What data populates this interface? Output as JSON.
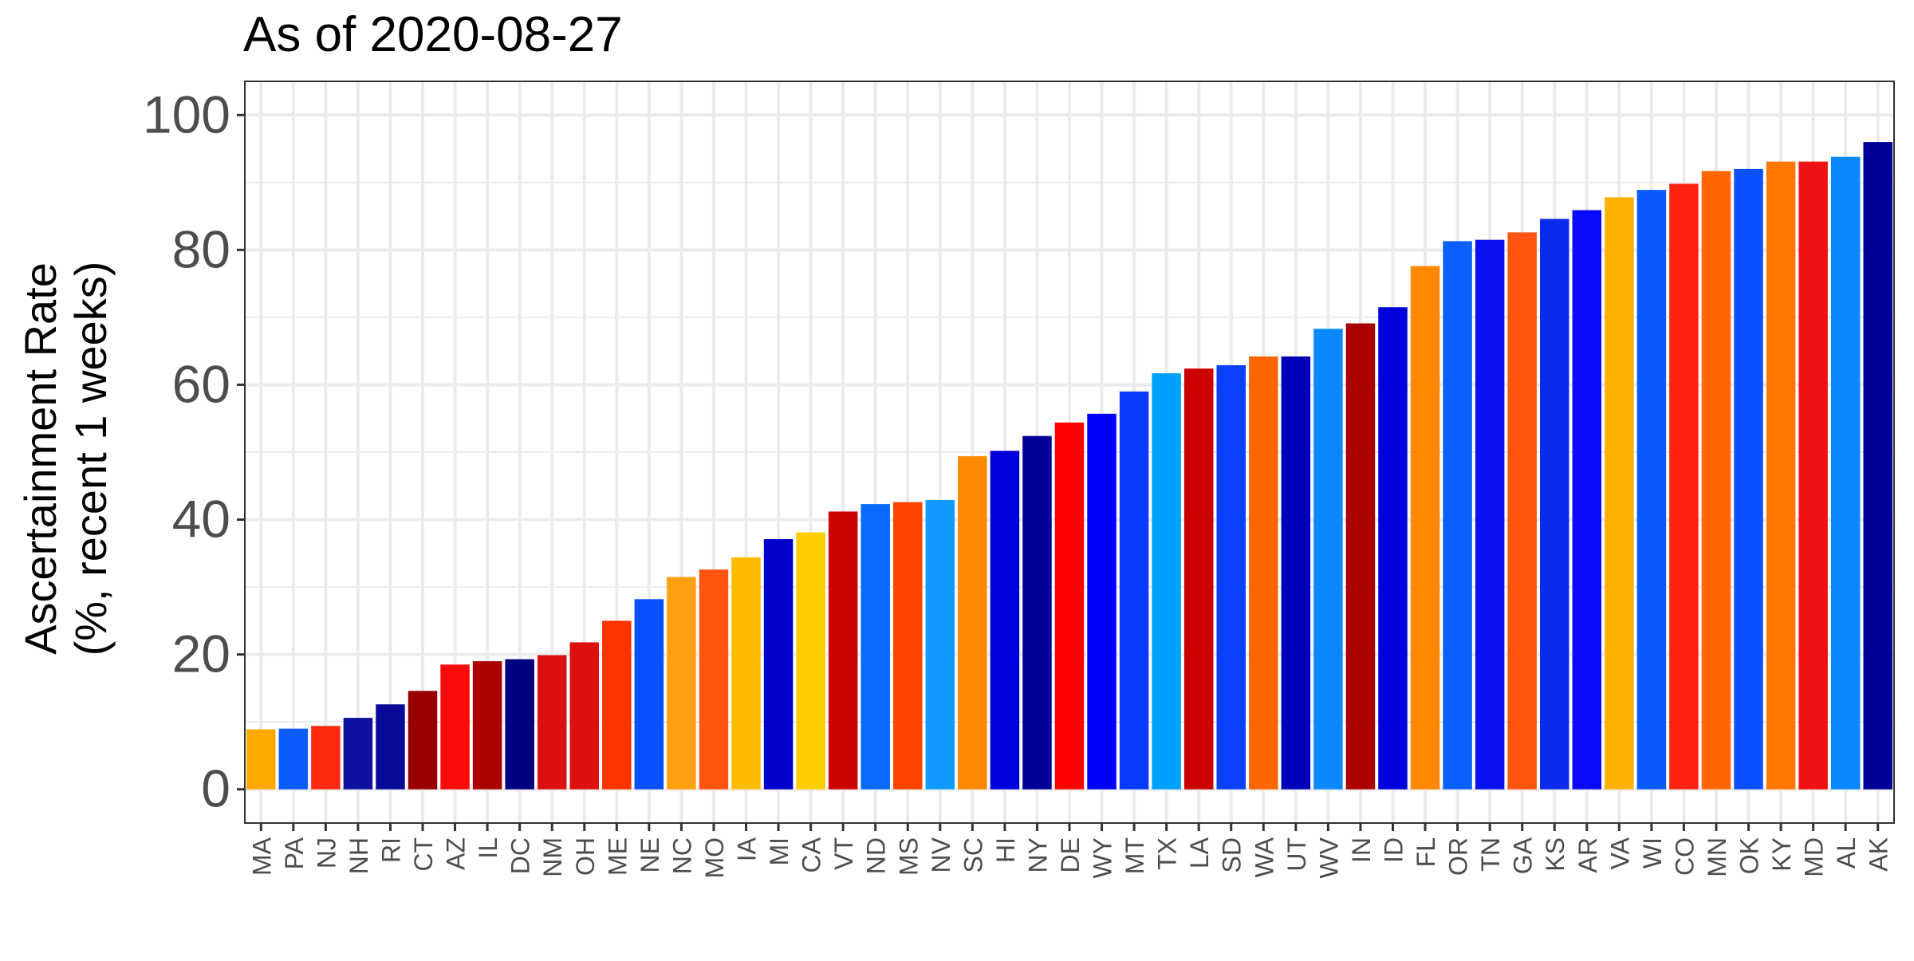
{
  "chart_data": {
    "type": "bar",
    "title": "As of 2020-08-27",
    "ylabel_line1": "Ascertainment Rate",
    "ylabel_line2": "(%, recent 1 weeks)",
    "xlabel": "",
    "ylim": [
      -5,
      105
    ],
    "yticks": [
      0,
      20,
      40,
      60,
      80,
      100
    ],
    "grid": true,
    "legend": "none",
    "categories": [
      "MA",
      "PA",
      "NJ",
      "NH",
      "RI",
      "CT",
      "AZ",
      "IL",
      "DC",
      "NM",
      "OH",
      "ME",
      "NE",
      "NC",
      "MO",
      "IA",
      "MI",
      "CA",
      "VT",
      "ND",
      "MS",
      "NV",
      "SC",
      "HI",
      "NY",
      "DE",
      "WY",
      "MT",
      "TX",
      "LA",
      "SD",
      "WA",
      "UT",
      "WV",
      "IN",
      "ID",
      "FL",
      "OR",
      "TN",
      "GA",
      "KS",
      "AR",
      "VA",
      "WI",
      "CO",
      "MN",
      "OK",
      "KY",
      "MD",
      "AL",
      "AK"
    ],
    "values": [
      8.9,
      9.0,
      9.4,
      10.6,
      12.6,
      14.6,
      18.5,
      19.0,
      19.3,
      19.9,
      21.8,
      25.0,
      28.2,
      31.5,
      32.6,
      34.4,
      37.1,
      38.1,
      41.2,
      42.3,
      42.6,
      42.9,
      49.4,
      50.2,
      52.4,
      54.4,
      55.7,
      59.0,
      61.7,
      62.4,
      62.9,
      64.2,
      64.2,
      68.3,
      69.1,
      71.5,
      77.6,
      81.3,
      81.5,
      82.6,
      84.6,
      85.9,
      87.8,
      88.9,
      89.8,
      91.7,
      92.0,
      93.1,
      93.1,
      93.8,
      96.0
    ],
    "colors": [
      "#FFAA00",
      "#0A5CFF",
      "#FF2A10",
      "#1010A0",
      "#0A0A99",
      "#990000",
      "#FF0A0A",
      "#AA0000",
      "#000080",
      "#DD1010",
      "#DD1010",
      "#FF3300",
      "#0A50FF",
      "#FFA010",
      "#FF5511",
      "#FFBB00",
      "#0000CC",
      "#FFCC00",
      "#CC0000",
      "#0A6AFF",
      "#FF4400",
      "#1199FF",
      "#FF8800",
      "#0000DD",
      "#000099",
      "#FF0000",
      "#0000FF",
      "#0A3AFF",
      "#00A0FF",
      "#CC0000",
      "#0A40FF",
      "#FF6600",
      "#0000BB",
      "#0A88FF",
      "#AA0000",
      "#0000DD",
      "#FF8800",
      "#0A60FF",
      "#0A10EE",
      "#FF5511",
      "#0A2AEE",
      "#0A0AFF",
      "#FFB000",
      "#0A5AFF",
      "#FF2210",
      "#FF6600",
      "#0A50FF",
      "#FF7700",
      "#EE1111",
      "#0A88FF",
      "#000099"
    ]
  }
}
